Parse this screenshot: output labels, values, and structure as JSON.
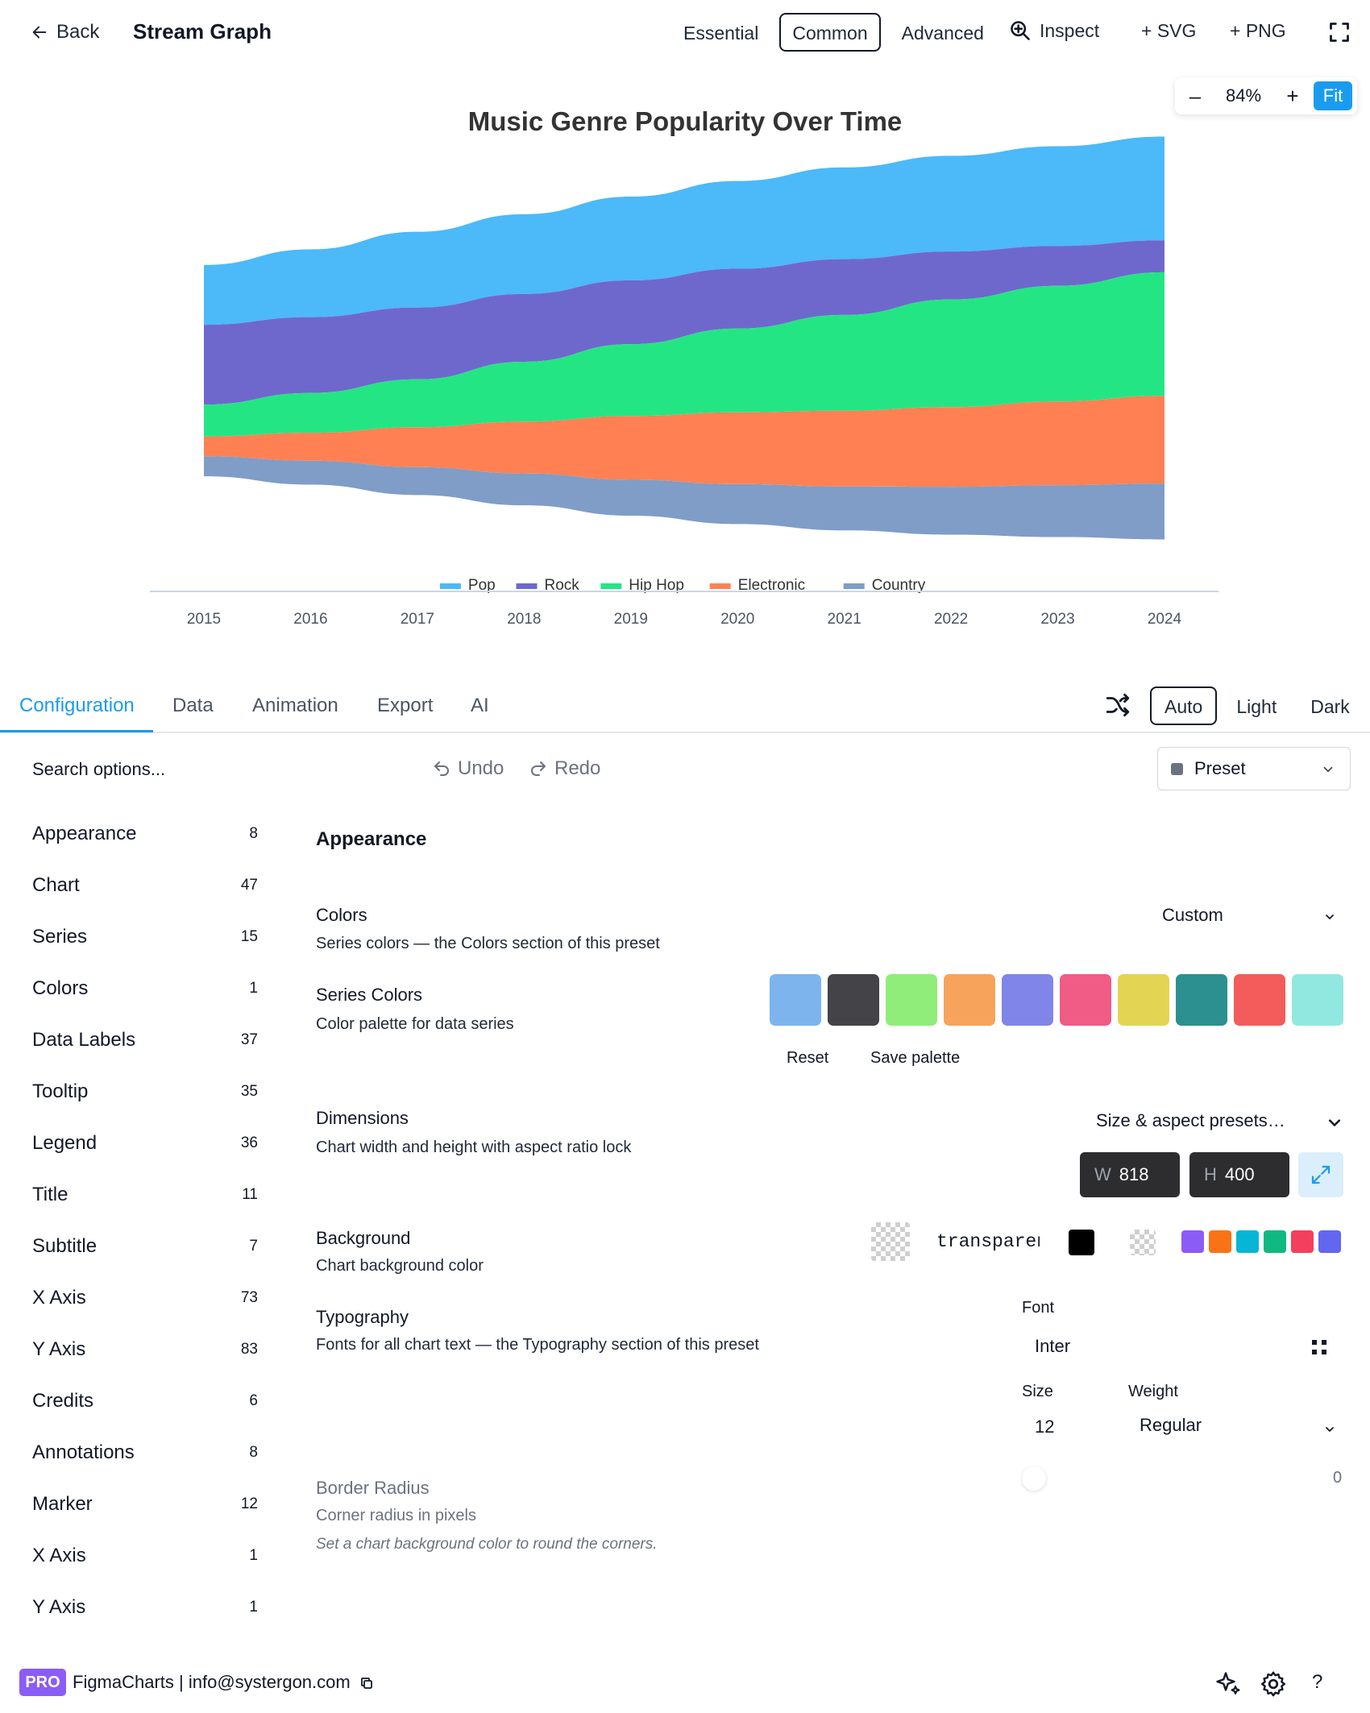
{
  "header": {
    "back_label": "Back",
    "title": "Stream Graph",
    "modes": [
      "Essential",
      "Common",
      "Advanced"
    ],
    "active_mode": "Common",
    "inspect_label": "Inspect",
    "add_svg_label": "+ SVG",
    "add_png_label": "+ PNG"
  },
  "zoom": {
    "minus": "–",
    "value": "84%",
    "plus": "+",
    "fit_label": "Fit"
  },
  "chart_data": {
    "type": "area",
    "subtype": "streamgraph",
    "title": "Music Genre Popularity Over Time",
    "categories": [
      "2015",
      "2016",
      "2017",
      "2018",
      "2019",
      "2020",
      "2021",
      "2022",
      "2023",
      "2024"
    ],
    "series": [
      {
        "name": "Pop",
        "color": "#4cb9f9",
        "values": [
          15,
          17,
          19,
          20,
          21,
          22,
          23,
          24,
          25,
          26
        ]
      },
      {
        "name": "Rock",
        "color": "#6f68cc",
        "values": [
          20,
          19,
          18,
          17,
          16,
          15,
          14,
          12,
          10,
          8
        ]
      },
      {
        "name": "Hip Hop",
        "color": "#24e584",
        "values": [
          8,
          10,
          12,
          15,
          18,
          21,
          24,
          27,
          29,
          31
        ]
      },
      {
        "name": "Electronic",
        "color": "#ff8153",
        "values": [
          5,
          7,
          10,
          13,
          16,
          18,
          19,
          20,
          21,
          22
        ]
      },
      {
        "name": "Country",
        "color": "#7f9dc7",
        "values": [
          5,
          6,
          7,
          8,
          9,
          10,
          11,
          12,
          13,
          14
        ]
      }
    ],
    "legend_position": "bottom",
    "grid": false
  },
  "tabs": {
    "items": [
      "Configuration",
      "Data",
      "Animation",
      "Export",
      "AI"
    ],
    "active": "Configuration"
  },
  "theme": {
    "items": [
      "Auto",
      "Light",
      "Dark"
    ],
    "active": "Auto"
  },
  "toolbar": {
    "search_placeholder": "Search options...",
    "undo_label": "Undo",
    "redo_label": "Redo",
    "preset_label": "Preset"
  },
  "sidebar": {
    "items": [
      {
        "label": "Appearance",
        "count": "8"
      },
      {
        "label": "Chart",
        "count": "47"
      },
      {
        "label": "Series",
        "count": "15"
      },
      {
        "label": "Colors",
        "count": "1"
      },
      {
        "label": "Data Labels",
        "count": "37"
      },
      {
        "label": "Tooltip",
        "count": "35"
      },
      {
        "label": "Legend",
        "count": "36"
      },
      {
        "label": "Title",
        "count": "11"
      },
      {
        "label": "Subtitle",
        "count": "7"
      },
      {
        "label": "X Axis",
        "count": "73"
      },
      {
        "label": "Y Axis",
        "count": "83"
      },
      {
        "label": "Credits",
        "count": "6"
      },
      {
        "label": "Annotations",
        "count": "8"
      },
      {
        "label": "Marker",
        "count": "12"
      },
      {
        "label": "X Axis",
        "count": "1"
      },
      {
        "label": "Y Axis",
        "count": "1"
      }
    ]
  },
  "appearance": {
    "heading": "Appearance",
    "colors": {
      "label": "Colors",
      "desc": "Series colors — the Colors section of this preset",
      "value": "Custom"
    },
    "series_colors": {
      "label": "Series Colors",
      "desc": "Color palette for data series",
      "swatches": [
        "#7eb4ee",
        "#434348",
        "#91ed7a",
        "#f7a35c",
        "#8085e9",
        "#f05c85",
        "#e4d454",
        "#2b908f",
        "#f45b5b",
        "#91e8e1"
      ],
      "reset_label": "Reset",
      "save_label": "Save palette"
    },
    "dimensions": {
      "label": "Dimensions",
      "desc": "Chart width and height with aspect ratio lock",
      "presets_label": "Size & aspect presets…",
      "width_prefix": "W",
      "width": "818",
      "height_prefix": "H",
      "height": "400"
    },
    "background": {
      "label": "Background",
      "desc": "Chart background color",
      "value": "transparent",
      "quick_colors": [
        "#8b5cf6",
        "#f97316",
        "#06b6d4",
        "#10b981",
        "#f43f5e",
        "#6366f1"
      ]
    },
    "typography": {
      "label": "Typography",
      "desc": "Fonts for all chart text — the Typography section of this preset",
      "font_label": "Font",
      "font_value": "Inter",
      "size_label": "Size",
      "size_value": "12",
      "weight_label": "Weight",
      "weight_value": "Regular"
    },
    "border_radius": {
      "label": "Border Radius",
      "desc": "Corner radius in pixels",
      "hint": "Set a chart background color to round the corners.",
      "value": "0"
    }
  },
  "footer": {
    "badge": "PRO",
    "text": "FigmaCharts | info@systergon.com",
    "help": "?"
  }
}
